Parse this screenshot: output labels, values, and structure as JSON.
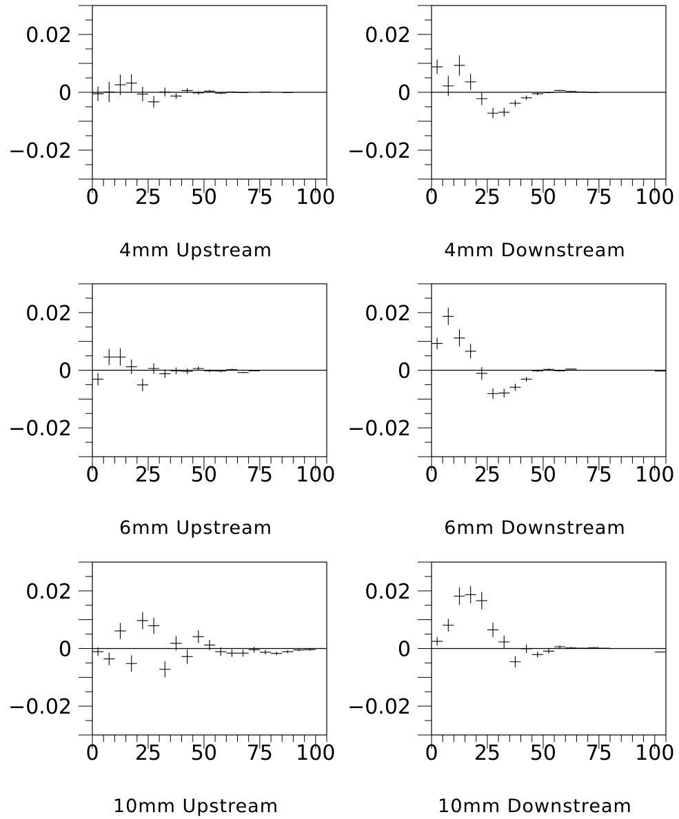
{
  "chart_data": [
    {
      "type": "scatter",
      "title": "4mm Upstream",
      "xlim": [
        0,
        105
      ],
      "ylim": [
        -0.03,
        0.03
      ],
      "x_ticks": [
        0,
        25,
        50,
        75,
        100
      ],
      "x_tick_labels": [
        "0",
        "25",
        "50",
        "75",
        "100"
      ],
      "y_ticks": [
        -0.02,
        0,
        0.02
      ],
      "y_tick_labels": [
        "−0.02",
        "0",
        "0.02"
      ],
      "zero_line": true,
      "series": [
        {
          "x": [
            2.5,
            7.5,
            12.5,
            17.5,
            22.5,
            27.5,
            32.5,
            37.5,
            42.5,
            47.5,
            52.5,
            57.5,
            62.5,
            67.5,
            72.5,
            77.5,
            82.5,
            87.5,
            92.5,
            97.5,
            102.5
          ],
          "y": [
            -0.0005,
            0.0001,
            0.0026,
            0.0032,
            -0.0006,
            -0.0033,
            0.0001,
            -0.0013,
            0.0006,
            -0.0002,
            0.0004,
            -0.0003,
            0.0001,
            -0.0001,
            0.0,
            0.0001,
            0.0,
            -0.0001,
            0.0,
            0.0,
            0.0
          ],
          "x_err": [
            2.5,
            2.5,
            2.5,
            2.5,
            2.5,
            2.5,
            2.5,
            2.5,
            2.5,
            2.5,
            2.5,
            2.5,
            2.5,
            2.5,
            2.5,
            2.5,
            2.5,
            2.5,
            2.5,
            2.5,
            2.5
          ],
          "y_err": [
            0.0025,
            0.0035,
            0.0035,
            0.003,
            0.0025,
            0.002,
            0.0015,
            0.001,
            0.0008,
            0.0006,
            0.0004,
            0.0003,
            0.0002,
            0.0002,
            0.0001,
            0.0001,
            0.0001,
            0.0001,
            0.0,
            0.0,
            0.0
          ]
        }
      ]
    },
    {
      "type": "scatter",
      "title": "4mm Downstream",
      "xlim": [
        0,
        105
      ],
      "ylim": [
        -0.03,
        0.03
      ],
      "x_ticks": [
        0,
        25,
        50,
        75,
        100
      ],
      "x_tick_labels": [
        "0",
        "25",
        "50",
        "75",
        "100"
      ],
      "y_ticks": [
        -0.02,
        0,
        0.02
      ],
      "y_tick_labels": [
        "−0.02",
        "0",
        "0.02"
      ],
      "zero_line": true,
      "series": [
        {
          "x": [
            2.5,
            7.5,
            12.5,
            17.5,
            22.5,
            27.5,
            32.5,
            37.5,
            42.5,
            47.5,
            52.5,
            57.5,
            62.5,
            67.5,
            72.5,
            77.5,
            82.5,
            87.5,
            92.5,
            97.5,
            102.5
          ],
          "y": [
            0.0088,
            0.0022,
            0.0093,
            0.0036,
            -0.0022,
            -0.0072,
            -0.0069,
            -0.0038,
            -0.0019,
            -0.0005,
            -0.0001,
            0.0006,
            0.0003,
            0.0001,
            -0.0001,
            0.0,
            0.0,
            0.0,
            0.0,
            0.0,
            0.0
          ],
          "x_err": [
            2.5,
            2.5,
            2.5,
            2.5,
            2.5,
            2.5,
            2.5,
            2.5,
            2.5,
            2.5,
            2.5,
            2.5,
            2.5,
            2.5,
            2.5,
            2.5,
            2.5,
            2.5,
            2.5,
            2.5,
            2.5
          ],
          "y_err": [
            0.0025,
            0.0035,
            0.0035,
            0.0028,
            0.0022,
            0.0018,
            0.0015,
            0.0011,
            0.0008,
            0.0005,
            0.0003,
            0.0002,
            0.0002,
            0.0001,
            0.0001,
            0.0,
            0.0,
            0.0,
            0.0,
            0.0,
            0.0
          ]
        }
      ]
    },
    {
      "type": "scatter",
      "title": "6mm Upstream",
      "xlim": [
        0,
        105
      ],
      "ylim": [
        -0.03,
        0.03
      ],
      "x_ticks": [
        0,
        25,
        50,
        75,
        100
      ],
      "x_tick_labels": [
        "0",
        "25",
        "50",
        "75",
        "100"
      ],
      "y_ticks": [
        -0.02,
        0,
        0.02
      ],
      "y_tick_labels": [
        "−0.02",
        "0",
        "0.02"
      ],
      "zero_line": true,
      "series": [
        {
          "x": [
            2.5,
            7.5,
            12.5,
            17.5,
            22.5,
            27.5,
            32.5,
            37.5,
            42.5,
            47.5,
            52.5,
            57.5,
            62.5,
            67.5,
            72.5,
            77.5,
            82.5,
            87.5,
            92.5,
            97.5,
            102.5
          ],
          "y": [
            -0.0031,
            0.0046,
            0.0046,
            0.0012,
            -0.0051,
            0.0006,
            -0.0012,
            -0.0002,
            -0.0004,
            0.0006,
            -0.0002,
            -0.0003,
            0.0002,
            -0.0008,
            -0.0002,
            0.0,
            0.0,
            0.0,
            0.0,
            0.0,
            0.0
          ],
          "x_err": [
            2.5,
            2.5,
            2.5,
            2.5,
            2.5,
            2.5,
            2.5,
            2.5,
            2.5,
            2.5,
            2.5,
            2.5,
            2.5,
            2.5,
            2.5,
            2.5,
            2.5,
            2.5,
            2.5,
            2.5,
            2.5
          ],
          "y_err": [
            0.0022,
            0.0028,
            0.003,
            0.0025,
            0.0022,
            0.0018,
            0.0015,
            0.0012,
            0.001,
            0.0007,
            0.0005,
            0.0004,
            0.0003,
            0.0002,
            0.0001,
            0.0001,
            0.0,
            0.0,
            0.0,
            0.0,
            0.0
          ]
        }
      ]
    },
    {
      "type": "scatter",
      "title": "6mm Downstream",
      "xlim": [
        0,
        105
      ],
      "ylim": [
        -0.03,
        0.03
      ],
      "x_ticks": [
        0,
        25,
        50,
        75,
        100
      ],
      "x_tick_labels": [
        "0",
        "25",
        "50",
        "75",
        "100"
      ],
      "y_ticks": [
        -0.02,
        0,
        0.02
      ],
      "y_tick_labels": [
        "−0.02",
        "0",
        "0.02"
      ],
      "zero_line": true,
      "series": [
        {
          "x": [
            2.5,
            7.5,
            12.5,
            17.5,
            22.5,
            27.5,
            32.5,
            37.5,
            42.5,
            47.5,
            52.5,
            57.5,
            62.5,
            67.5,
            72.5,
            77.5,
            82.5,
            87.5,
            92.5,
            97.5,
            102.5
          ],
          "y": [
            0.0093,
            0.0187,
            0.0112,
            0.0066,
            -0.0011,
            -0.0081,
            -0.0079,
            -0.0059,
            -0.0031,
            -0.0002,
            0.0003,
            -0.0002,
            0.0004,
            0.0,
            0.0,
            0.0,
            0.0,
            0.0,
            0.0,
            0.0,
            -0.0003
          ],
          "x_err": [
            2.5,
            2.5,
            2.5,
            2.5,
            2.5,
            2.5,
            2.5,
            2.5,
            2.5,
            2.5,
            2.5,
            2.5,
            2.5,
            2.5,
            2.5,
            2.5,
            2.5,
            2.5,
            2.5,
            2.5,
            2.5
          ],
          "y_err": [
            0.002,
            0.003,
            0.003,
            0.0025,
            0.0022,
            0.0018,
            0.0015,
            0.0012,
            0.0008,
            0.0004,
            0.0003,
            0.0002,
            0.0001,
            0.0001,
            0.0,
            0.0,
            0.0,
            0.0,
            0.0,
            0.0,
            0.0
          ]
        }
      ]
    },
    {
      "type": "scatter",
      "title": "10mm Upstream",
      "xlim": [
        0,
        105
      ],
      "ylim": [
        -0.03,
        0.03
      ],
      "x_ticks": [
        0,
        25,
        50,
        75,
        100
      ],
      "x_tick_labels": [
        "0",
        "25",
        "50",
        "75",
        "100"
      ],
      "y_ticks": [
        -0.02,
        0,
        0.02
      ],
      "y_tick_labels": [
        "−0.02",
        "0",
        "0.02"
      ],
      "zero_line": true,
      "series": [
        {
          "x": [
            2.5,
            7.5,
            12.5,
            17.5,
            22.5,
            27.5,
            32.5,
            37.5,
            42.5,
            47.5,
            52.5,
            57.5,
            62.5,
            67.5,
            72.5,
            77.5,
            82.5,
            87.5,
            92.5,
            97.5,
            102.5
          ],
          "y": [
            -0.0011,
            -0.0036,
            0.0061,
            -0.0052,
            0.0097,
            0.0079,
            -0.0072,
            0.0018,
            -0.0028,
            0.0041,
            0.0012,
            -0.0011,
            -0.0016,
            -0.0016,
            -0.0004,
            -0.0013,
            -0.0017,
            -0.0011,
            -0.0005,
            -0.0004,
            0.0
          ],
          "x_err": [
            2.5,
            2.5,
            2.5,
            2.5,
            2.5,
            2.5,
            2.5,
            2.5,
            2.5,
            2.5,
            2.5,
            2.5,
            2.5,
            2.5,
            2.5,
            2.5,
            2.5,
            2.5,
            2.5,
            2.5,
            2.5
          ],
          "y_err": [
            0.0015,
            0.0022,
            0.0028,
            0.0028,
            0.003,
            0.0028,
            0.0028,
            0.0025,
            0.0025,
            0.0022,
            0.0018,
            0.0015,
            0.0013,
            0.0012,
            0.001,
            0.0008,
            0.0006,
            0.0005,
            0.0004,
            0.0003,
            0.0002
          ]
        }
      ]
    },
    {
      "type": "scatter",
      "title": "10mm Downstream",
      "xlim": [
        0,
        105
      ],
      "ylim": [
        -0.03,
        0.03
      ],
      "x_ticks": [
        0,
        25,
        50,
        75,
        100
      ],
      "x_tick_labels": [
        "0",
        "25",
        "50",
        "75",
        "100"
      ],
      "y_ticks": [
        -0.02,
        0,
        0.02
      ],
      "y_tick_labels": [
        "−0.02",
        "0",
        "0.02"
      ],
      "zero_line": true,
      "series": [
        {
          "x": [
            2.5,
            7.5,
            12.5,
            17.5,
            22.5,
            27.5,
            32.5,
            37.5,
            42.5,
            47.5,
            52.5,
            57.5,
            62.5,
            67.5,
            72.5,
            77.5,
            82.5,
            87.5,
            92.5,
            97.5,
            102.5
          ],
          "y": [
            0.0025,
            0.0081,
            0.0182,
            0.0187,
            0.0166,
            0.0065,
            0.0023,
            -0.0046,
            -0.0001,
            -0.0021,
            -0.0009,
            0.0006,
            0.0002,
            0.0001,
            0.0003,
            0.0001,
            0.0,
            0.0,
            0.0,
            0.0,
            -0.0012
          ],
          "x_err": [
            2.5,
            2.5,
            2.5,
            2.5,
            2.5,
            2.5,
            2.5,
            2.5,
            2.5,
            2.5,
            2.5,
            2.5,
            2.5,
            2.5,
            2.5,
            2.5,
            2.5,
            2.5,
            2.5,
            2.5,
            2.5
          ],
          "y_err": [
            0.0015,
            0.0022,
            0.003,
            0.003,
            0.003,
            0.0025,
            0.0022,
            0.002,
            0.0015,
            0.001,
            0.0008,
            0.0005,
            0.0003,
            0.0002,
            0.0002,
            0.0001,
            0.0001,
            0.0,
            0.0,
            0.0,
            0.0
          ]
        }
      ]
    }
  ]
}
